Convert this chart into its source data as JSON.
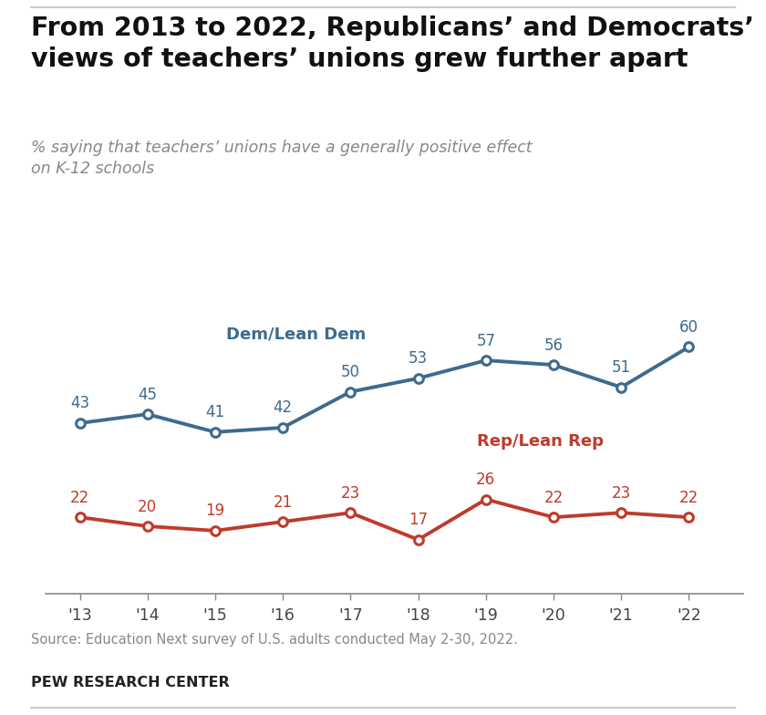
{
  "years": [
    2013,
    2014,
    2015,
    2016,
    2017,
    2018,
    2019,
    2020,
    2021,
    2022
  ],
  "year_labels": [
    "'13",
    "'14",
    "'15",
    "'16",
    "'17",
    "'18",
    "'19",
    "'20",
    "'21",
    "'22"
  ],
  "dem_values": [
    43,
    45,
    41,
    42,
    50,
    53,
    57,
    56,
    51,
    60
  ],
  "rep_values": [
    22,
    20,
    19,
    21,
    23,
    17,
    26,
    22,
    23,
    22
  ],
  "dem_color": "#3d6b8e",
  "rep_color": "#bf3b2b",
  "dem_label": "Dem/Lean Dem",
  "rep_label": "Rep/Lean Rep",
  "title": "From 2013 to 2022, Republicans’ and Democrats’\nviews of teachers’ unions grew further apart",
  "subtitle_line1": "% saying that teachers’ unions have a generally positive effect",
  "subtitle_line2": "on K-12 schools",
  "source_text": "Source: Education Next survey of U.S. adults conducted May 2-30, 2022.",
  "footer_text": "PEW RESEARCH CENTER",
  "bg_color": "#ffffff",
  "ylim": [
    5,
    72
  ],
  "marker_size": 7,
  "line_width": 2.8
}
